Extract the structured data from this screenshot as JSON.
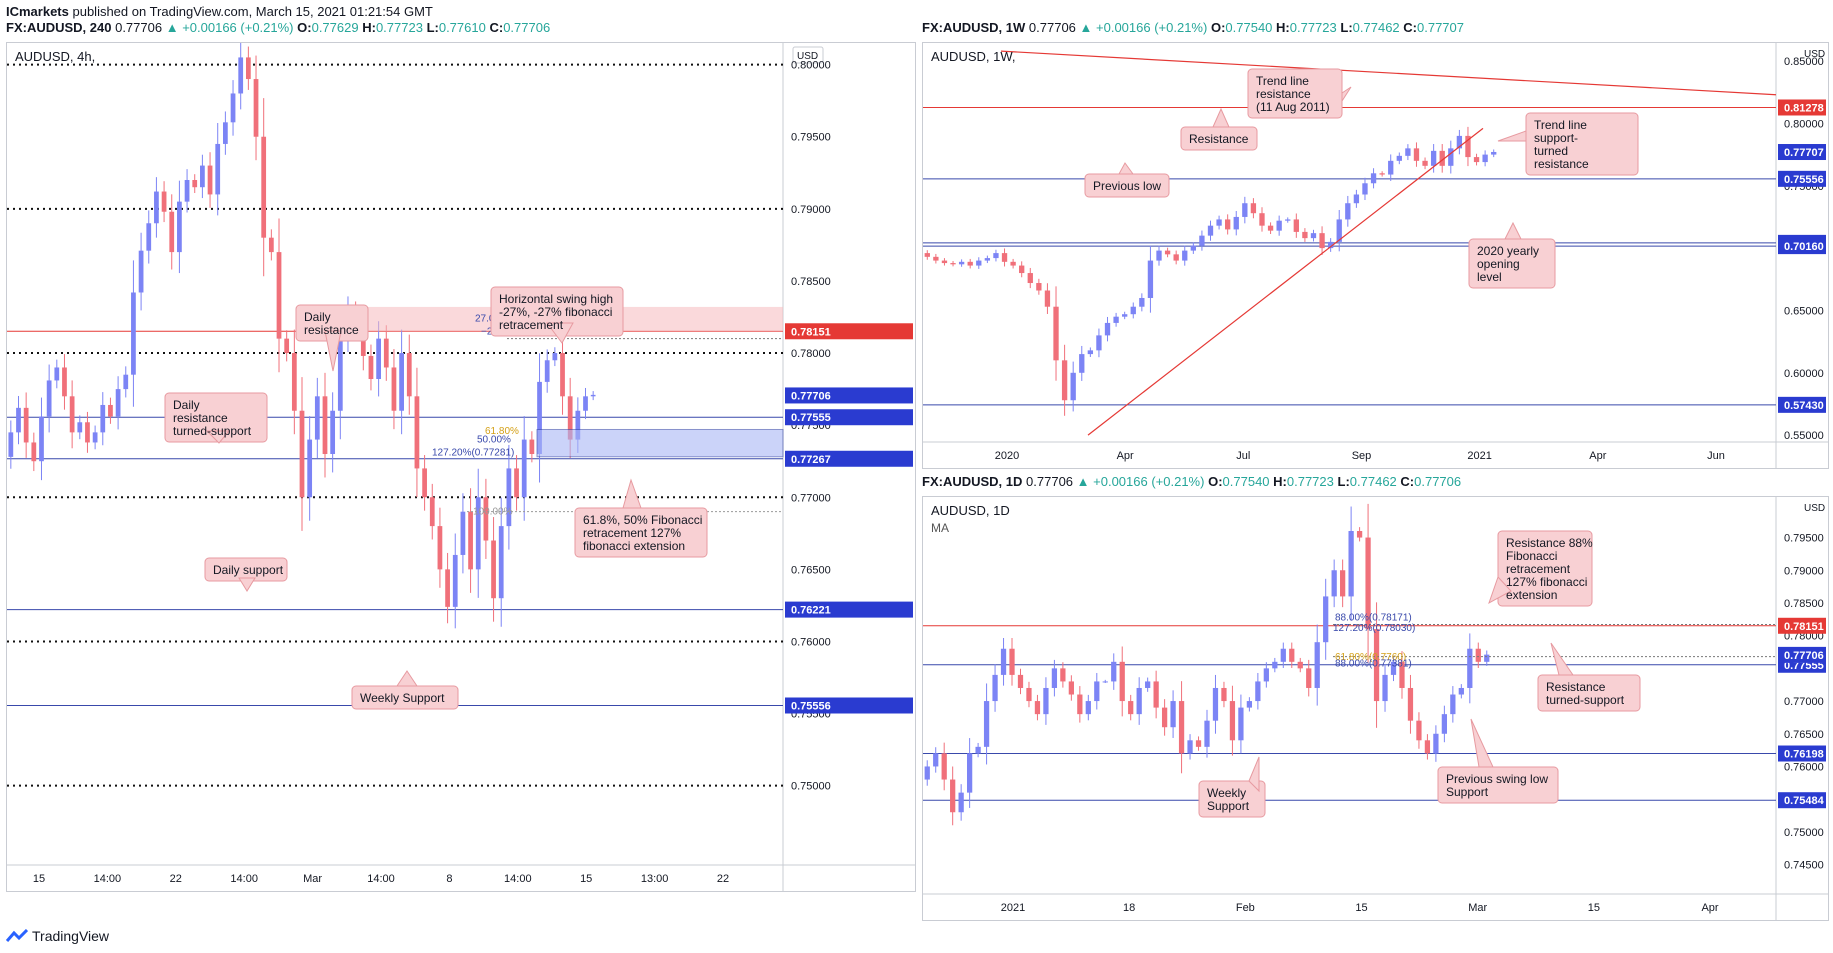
{
  "header": {
    "publisher": "ICmarkets",
    "published_text": " published on TradingView.com, March 15, 2021 01:21:54 GMT"
  },
  "footer": {
    "brand": "TradingView"
  },
  "colors": {
    "bull": "#7c84f5",
    "bear": "#f0707a",
    "support": "#3949ab",
    "resistance": "#e53935",
    "callout_bg": "#f8d0d3",
    "callout_border": "#e79aa0"
  },
  "panels": [
    {
      "id": "4h",
      "symbol_line": {
        "symbol": "FX:AUDUSD, 240",
        "last": "0.77706",
        "change": "+0.00166 (+0.21%)",
        "o": "0.77629",
        "h": "0.77723",
        "l": "0.77610",
        "c": "0.77706"
      },
      "title": "AUDUSD, 4h,",
      "currency": "USD",
      "chart_data": {
        "type": "candlestick",
        "ylim": [
          0.7445,
          0.8015
        ],
        "price_ticks": [
          "0.80000",
          "0.79500",
          "0.79000",
          "0.78500",
          "0.78000",
          "0.77500",
          "0.77000",
          "0.76500",
          "0.76000",
          "0.75500",
          "0.75000"
        ],
        "x_ticks": [
          "15",
          "14:00",
          "22",
          "14:00",
          "Mar",
          "14:00",
          "8",
          "14:00",
          "15",
          "13:00",
          "22"
        ],
        "levels": [
          {
            "price": 0.8,
            "style": "dotted",
            "label": "0.80000",
            "tag": "none"
          },
          {
            "price": 0.79,
            "style": "dotted",
            "label": "0.79000",
            "tag": "none"
          },
          {
            "price": 0.78,
            "style": "dotted",
            "label": "0.78000",
            "tag": "none"
          },
          {
            "price": 0.77,
            "style": "dotted",
            "label": "0.77000",
            "tag": "none"
          },
          {
            "price": 0.76,
            "style": "dotted",
            "label": "0.76000",
            "tag": "none"
          },
          {
            "price": 0.75,
            "style": "dotted",
            "label": "0.75000",
            "tag": "none"
          },
          {
            "price": 0.78151,
            "style": "red",
            "label": "0.78151",
            "tag": "red"
          },
          {
            "price": 0.77555,
            "style": "blue",
            "label": "0.77555",
            "tag": "blue"
          },
          {
            "price": 0.77267,
            "style": "blue",
            "label": "0.77267",
            "tag": "blue"
          },
          {
            "price": 0.76221,
            "style": "blue",
            "label": "0.76221",
            "tag": "blue"
          },
          {
            "price": 0.75556,
            "style": "blue",
            "label": "0.75556",
            "tag": "blue"
          }
        ],
        "last_price": {
          "price": 0.77706,
          "label": "0.77706"
        },
        "fib_labels": [
          "27.00%",
          "−27.00%",
          "61.80%",
          "50.00%",
          "127.20%(0.77281)",
          "100.00%"
        ],
        "annotations": [
          {
            "text": "Daily resistance"
          },
          {
            "text": "Horizontal swing high -27%, -27% fibonacci retracement"
          },
          {
            "text": "Daily resistance turned-support"
          },
          {
            "text": "61.8%, 50% Fibonacci retracement 127% fibonacci extension"
          },
          {
            "text": "Daily support"
          },
          {
            "text": "Weekly Support"
          }
        ],
        "closes": [
          0.7745,
          0.7762,
          0.7738,
          0.7725,
          0.7756,
          0.7781,
          0.779,
          0.777,
          0.7745,
          0.7752,
          0.7738,
          0.7745,
          0.7764,
          0.7756,
          0.7775,
          0.7785,
          0.7842,
          0.7871,
          0.789,
          0.7912,
          0.7898,
          0.787,
          0.7905,
          0.792,
          0.7915,
          0.793,
          0.791,
          0.7945,
          0.796,
          0.798,
          0.8005,
          0.799,
          0.795,
          0.788,
          0.787,
          0.781,
          0.78,
          0.776,
          0.77,
          0.774,
          0.777,
          0.773,
          0.776,
          0.781,
          0.783,
          0.782,
          0.7798,
          0.7782,
          0.781,
          0.779,
          0.776,
          0.78,
          0.777,
          0.772,
          0.77,
          0.768,
          0.765,
          0.7624,
          0.766,
          0.769,
          0.765,
          0.77,
          0.767,
          0.763,
          0.768,
          0.772,
          0.77,
          0.774,
          0.773,
          0.778,
          0.7795,
          0.78,
          0.777,
          0.774,
          0.776,
          0.777,
          0.7771
        ]
      }
    },
    {
      "id": "1w",
      "symbol_line": {
        "symbol": "FX:AUDUSD, 1W",
        "last": "0.77706",
        "change": "+0.00166 (+0.21%)",
        "o": "0.77540",
        "h": "0.77723",
        "l": "0.77462",
        "c": "0.77707"
      },
      "title": "AUDUSD, 1W,",
      "currency": "USD",
      "chart_data": {
        "type": "candlestick",
        "ylim": [
          0.5445,
          0.8645
        ],
        "price_ticks": [
          "0.85000",
          "0.80000",
          "0.75000",
          "0.70000",
          "0.65000",
          "0.60000",
          "0.55000"
        ],
        "x_ticks": [
          "2020",
          "Apr",
          "Jul",
          "Sep",
          "2021",
          "Apr",
          "Jun"
        ],
        "levels": [
          {
            "price": 0.81278,
            "style": "red",
            "label": "0.81278",
            "tag": "red"
          },
          {
            "price": 0.75556,
            "style": "blue",
            "label": "0.75556",
            "tag": "blue"
          },
          {
            "price": 0.7042,
            "style": "blue",
            "label": "0.70420",
            "tag": "blue"
          },
          {
            "price": 0.7016,
            "style": "blue",
            "label": "0.70160",
            "tag": "blue"
          },
          {
            "price": 0.5743,
            "style": "blue",
            "label": "0.57430",
            "tag": "blue"
          }
        ],
        "last_price": {
          "price": 0.77707,
          "label": "0.77707"
        },
        "annotations": [
          {
            "text": "Trend line resistance (11 Aug 2011)"
          },
          {
            "text": "Resistance"
          },
          {
            "text": "Trend line support- turned resistance"
          },
          {
            "text": "Previous low"
          },
          {
            "text": "2020 yearly opening level"
          }
        ],
        "closes": [
          0.693,
          0.69,
          0.688,
          0.687,
          0.689,
          0.686,
          0.69,
          0.692,
          0.696,
          0.689,
          0.686,
          0.68,
          0.672,
          0.666,
          0.653,
          0.61,
          0.578,
          0.6,
          0.615,
          0.618,
          0.63,
          0.64,
          0.645,
          0.647,
          0.653,
          0.66,
          0.69,
          0.698,
          0.695,
          0.69,
          0.698,
          0.702,
          0.71,
          0.718,
          0.723,
          0.715,
          0.725,
          0.736,
          0.728,
          0.718,
          0.714,
          0.722,
          0.723,
          0.713,
          0.708,
          0.712,
          0.7,
          0.705,
          0.723,
          0.736,
          0.743,
          0.752,
          0.76,
          0.759,
          0.77,
          0.774,
          0.78,
          0.77,
          0.766,
          0.778,
          0.766,
          0.78,
          0.79,
          0.773,
          0.769,
          0.775,
          0.7771
        ]
      }
    },
    {
      "id": "1d",
      "symbol_line": {
        "symbol": "FX:AUDUSD, 1D",
        "last": "0.77706",
        "change": "+0.00166 (+0.21%)",
        "o": "0.77540",
        "h": "0.77723",
        "l": "0.77462",
        "c": "0.77706"
      },
      "title": "AUDUSD, 1D",
      "ma_label": "MA",
      "currency": "USD",
      "chart_data": {
        "type": "candlestick",
        "ylim": [
          0.7405,
          0.8012
        ],
        "price_ticks": [
          "0.80000",
          "0.79500",
          "0.79000",
          "0.78500",
          "0.78000",
          "0.77500",
          "0.77000",
          "0.76500",
          "0.76000",
          "0.75500",
          "0.75000",
          "0.74500"
        ],
        "x_ticks": [
          "2021",
          "18",
          "Feb",
          "15",
          "Mar",
          "15",
          "Apr"
        ],
        "levels": [
          {
            "price": 0.78151,
            "style": "red",
            "label": "0.78151",
            "tag": "red"
          },
          {
            "price": 0.77555,
            "style": "blue",
            "label": "0.77555",
            "tag": "blue"
          },
          {
            "price": 0.76198,
            "style": "blue",
            "label": "0.76198",
            "tag": "blue"
          },
          {
            "price": 0.75484,
            "style": "blue",
            "label": "0.75484",
            "tag": "blue"
          }
        ],
        "last_price": {
          "price": 0.77706,
          "label": "0.77706"
        },
        "fib_labels": [
          "88.00%(0.78171)",
          "127.20%(0.78030)",
          "61.80%(0.7760)",
          "88.00%(0.77381)"
        ],
        "annotations": [
          {
            "text": "Resistance 88% Fibonacci retracement 127% fibonacci extension"
          },
          {
            "text": "Resistance turned-support"
          },
          {
            "text": "Previous swing low Support"
          },
          {
            "text": "Weekly Support"
          }
        ],
        "closes": [
          0.76,
          0.762,
          0.758,
          0.753,
          0.756,
          0.762,
          0.763,
          0.77,
          0.774,
          0.778,
          0.774,
          0.772,
          0.77,
          0.768,
          0.772,
          0.775,
          0.773,
          0.771,
          0.768,
          0.77,
          0.773,
          0.773,
          0.776,
          0.77,
          0.768,
          0.772,
          0.773,
          0.769,
          0.766,
          0.77,
          0.762,
          0.764,
          0.763,
          0.767,
          0.772,
          0.77,
          0.764,
          0.769,
          0.77,
          0.773,
          0.775,
          0.776,
          0.778,
          0.776,
          0.775,
          0.772,
          0.779,
          0.786,
          0.79,
          0.786,
          0.796,
          0.795,
          0.781,
          0.77,
          0.774,
          0.776,
          0.772,
          0.767,
          0.764,
          0.762,
          0.765,
          0.768,
          0.771,
          0.772,
          0.778,
          0.776,
          0.7771
        ]
      }
    }
  ]
}
